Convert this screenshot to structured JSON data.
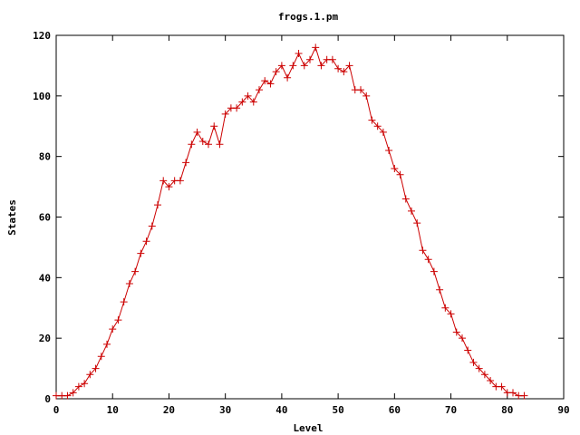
{
  "chart_data": {
    "type": "line",
    "title": "frogs.1.pm",
    "xlabel": "Level",
    "ylabel": "States",
    "xlim": [
      0,
      90
    ],
    "ylim": [
      0,
      120
    ],
    "xticks": [
      0,
      10,
      20,
      30,
      40,
      50,
      60,
      70,
      80,
      90
    ],
    "yticks": [
      0,
      20,
      40,
      60,
      80,
      100,
      120
    ],
    "grid": false,
    "legend": "none",
    "marker": "plus",
    "color": "#cc0000",
    "series": [
      {
        "x": [
          0,
          1,
          2,
          3,
          4,
          5,
          6,
          7,
          8,
          9,
          10,
          11,
          12,
          13,
          14,
          15,
          16,
          17,
          18,
          19,
          20,
          21,
          22,
          23,
          24,
          25,
          26,
          27,
          28,
          29,
          30,
          31,
          32,
          33,
          34,
          35,
          36,
          37,
          38,
          39,
          40,
          41,
          42,
          43,
          44,
          45,
          46,
          47,
          48,
          49,
          50,
          51,
          52,
          53,
          54,
          55,
          56,
          57,
          58,
          59,
          60,
          61,
          62,
          63,
          64,
          65,
          66,
          67,
          68,
          69,
          70,
          71,
          72,
          73,
          74,
          75,
          76,
          77,
          78,
          79,
          80,
          81,
          82,
          83
        ],
        "y": [
          1,
          1,
          1,
          2,
          4,
          5,
          8,
          10,
          14,
          18,
          23,
          26,
          32,
          38,
          42,
          48,
          52,
          57,
          64,
          72,
          70,
          72,
          72,
          78,
          84,
          88,
          85,
          84,
          90,
          84,
          94,
          96,
          96,
          98,
          100,
          98,
          102,
          105,
          104,
          108,
          110,
          106,
          110,
          114,
          110,
          112,
          116,
          110,
          112,
          112,
          109,
          108,
          110,
          102,
          102,
          100,
          92,
          90,
          88,
          82,
          76,
          74,
          66,
          62,
          58,
          49,
          46,
          42,
          36,
          30,
          28,
          22,
          20,
          16,
          12,
          10,
          8,
          6,
          4,
          4,
          2,
          2,
          1,
          1
        ]
      }
    ]
  }
}
